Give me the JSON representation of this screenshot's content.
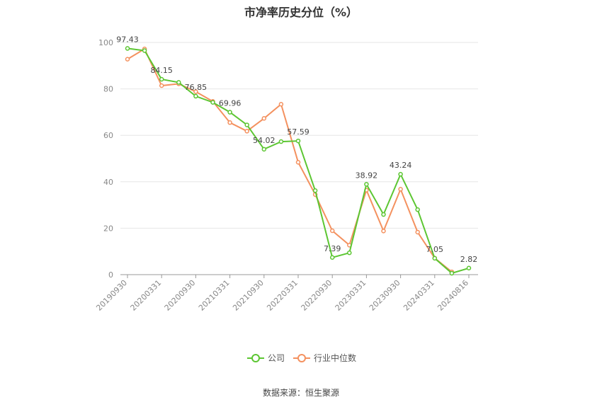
{
  "chart_data": {
    "type": "line",
    "title": "市净率历史分位（%）",
    "source": "数据来源：恒生聚源",
    "ylim": [
      0,
      100
    ],
    "yticks": [
      0,
      20,
      40,
      60,
      80,
      100
    ],
    "x_tick_labels": [
      "20190930",
      "20200331",
      "20200930",
      "20210331",
      "20210930",
      "20220331",
      "20220930",
      "20230331",
      "20230930",
      "20240331",
      "20240816"
    ],
    "x_tick_indices": [
      0,
      2,
      4,
      6,
      8,
      10,
      12,
      14,
      16,
      18,
      20
    ],
    "x": [
      "20190930",
      "20191231",
      "20200331",
      "20200630",
      "20200930",
      "20201231",
      "20210331",
      "20210630",
      "20210930",
      "20211231",
      "20220331",
      "20220630",
      "20220930",
      "20221231",
      "20230331",
      "20230630",
      "20230930",
      "20231231",
      "20240331",
      "20240630",
      "20240816"
    ],
    "series": [
      {
        "name": "公司",
        "color": "#5cc632",
        "values": [
          97.43,
          96.5,
          84.15,
          82.8,
          76.85,
          74.2,
          69.96,
          64.5,
          54.02,
          57.3,
          57.59,
          36.2,
          7.39,
          9.4,
          38.92,
          25.9,
          43.24,
          28.0,
          7.05,
          0.6,
          2.82
        ],
        "labels": {
          "0": "97.43",
          "2": "84.15",
          "4": "76.85",
          "6": "69.96",
          "8": "54.02",
          "10": "57.59",
          "12": "7.39",
          "14": "38.92",
          "16": "43.24",
          "18": "7.05",
          "20": "2.82"
        }
      },
      {
        "name": "行业中位数",
        "color": "#f4915f",
        "values": [
          92.8,
          97.2,
          81.4,
          82.2,
          78.8,
          74.6,
          65.5,
          61.8,
          67.3,
          73.4,
          48.4,
          34.5,
          18.9,
          12.7,
          36.4,
          18.8,
          36.8,
          18.3,
          7.1,
          1.2,
          null
        ]
      }
    ],
    "legend": [
      "公司",
      "行业中位数"
    ],
    "legend_position": "bottom"
  }
}
